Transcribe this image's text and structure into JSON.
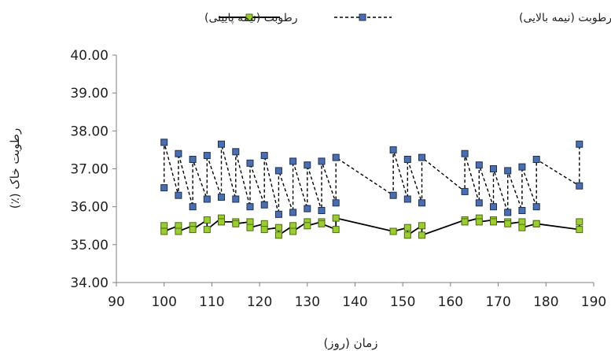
{
  "chart_data": {
    "type": "line",
    "title": "",
    "xlabel": "زمان (روز)",
    "ylabel": "رطوبت خاک (٪)",
    "xlim": [
      90,
      190
    ],
    "ylim": [
      34,
      40
    ],
    "xticks": [
      "90",
      "100",
      "110",
      "120",
      "130",
      "140",
      "150",
      "160",
      "170",
      "180",
      "190"
    ],
    "yticks": [
      "34.00",
      "35.00",
      "36.00",
      "37.00",
      "38.00",
      "39.00",
      "40.00"
    ],
    "grid": false,
    "legend_position": "top",
    "series": [
      {
        "name": "رطوبت (نیمه بالایی)",
        "style": "dashed",
        "color": "#000000",
        "marker_color": "#4a6fb0",
        "x": [
          100,
          100,
          103,
          103,
          106,
          106,
          109,
          109,
          112,
          112,
          115,
          115,
          118,
          118,
          121,
          121,
          124,
          124,
          127,
          127,
          130,
          130,
          133,
          133,
          136,
          136,
          148,
          148,
          151,
          151,
          154,
          154,
          163,
          163,
          166,
          166,
          169,
          169,
          172,
          172,
          175,
          175,
          178,
          178,
          187,
          187
        ],
        "y": [
          36.5,
          37.7,
          36.3,
          37.4,
          36.0,
          37.25,
          36.2,
          37.35,
          36.25,
          37.65,
          36.2,
          37.45,
          36.0,
          37.15,
          36.05,
          37.35,
          35.8,
          36.95,
          35.85,
          37.2,
          35.95,
          37.1,
          35.9,
          37.2,
          36.1,
          37.3,
          36.3,
          37.5,
          36.2,
          37.25,
          36.1,
          37.3,
          36.4,
          37.4,
          36.1,
          37.1,
          36.0,
          37.0,
          35.85,
          36.95,
          35.9,
          37.05,
          36.0,
          37.25,
          36.55,
          37.65
        ]
      },
      {
        "name": "رطوبت (نیمه پایینی)",
        "style": "solid",
        "color": "#000000",
        "marker_color": "#9acd32",
        "x": [
          100,
          100,
          103,
          103,
          106,
          106,
          109,
          109,
          112,
          112,
          115,
          115,
          118,
          118,
          121,
          121,
          124,
          124,
          127,
          127,
          130,
          130,
          133,
          133,
          136,
          136,
          148,
          148,
          151,
          151,
          154,
          154,
          163,
          163,
          166,
          166,
          169,
          169,
          172,
          172,
          175,
          175,
          178,
          178,
          187,
          187
        ],
        "y": [
          35.5,
          35.35,
          35.5,
          35.35,
          35.5,
          35.4,
          35.65,
          35.4,
          35.7,
          35.6,
          35.6,
          35.55,
          35.6,
          35.45,
          35.55,
          35.4,
          35.45,
          35.25,
          35.5,
          35.35,
          35.6,
          35.5,
          35.6,
          35.55,
          35.4,
          35.7,
          35.35,
          35.35,
          35.45,
          35.25,
          35.5,
          35.25,
          35.65,
          35.6,
          35.7,
          35.6,
          35.65,
          35.6,
          35.6,
          35.55,
          35.6,
          35.45,
          35.55,
          35.55,
          35.4,
          35.6
        ]
      }
    ]
  }
}
